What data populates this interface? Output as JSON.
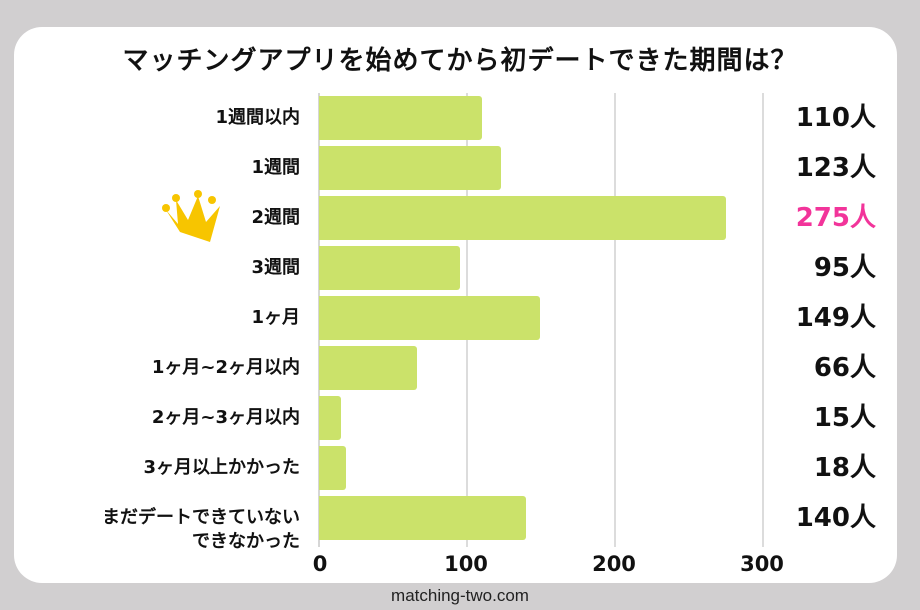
{
  "title": "マッチングアプリを始めてから初デートできた期間は？",
  "footer": "matching-two.com",
  "colors": {
    "bar": "#cbe26a",
    "highlight": "#f2349a",
    "crown": "#f7c500",
    "background": "#d1cfd0"
  },
  "rows": [
    {
      "label": "1週間以内",
      "value": 110,
      "value_label": "110人"
    },
    {
      "label": "1週間",
      "value": 123,
      "value_label": "123人"
    },
    {
      "label": "2週間",
      "value": 275,
      "value_label": "275人"
    },
    {
      "label": "3週間",
      "value": 95,
      "value_label": "95人"
    },
    {
      "label": "1ヶ月",
      "value": 149,
      "value_label": "149人"
    },
    {
      "label": "1ヶ月~2ヶ月以内",
      "value": 66,
      "value_label": "66人"
    },
    {
      "label": "2ヶ月~3ヶ月以内",
      "value": 15,
      "value_label": "15人"
    },
    {
      "label": "3ヶ月以上かかった",
      "value": 18,
      "value_label": "18人"
    },
    {
      "label_line1": "まだデートできていない",
      "label_line2": "できなかった",
      "value": 140,
      "value_label": "140人"
    }
  ],
  "ticks": [
    "0",
    "100",
    "200",
    "300"
  ],
  "crown_icon": "crown-icon",
  "chart_data": {
    "type": "bar",
    "orientation": "horizontal",
    "title": "マッチングアプリを始めてから初デートできた期間は？",
    "categories": [
      "1週間以内",
      "1週間",
      "2週間",
      "3週間",
      "1ヶ月",
      "1ヶ月~2ヶ月以内",
      "2ヶ月~3ヶ月以内",
      "3ヶ月以上かかった",
      "まだデートできていない/できなかった"
    ],
    "values": [
      110,
      123,
      275,
      95,
      149,
      66,
      15,
      18,
      140
    ],
    "unit": "人",
    "xlabel": "",
    "ylabel": "",
    "xlim": [
      0,
      300
    ],
    "xticks": [
      0,
      100,
      200,
      300
    ],
    "grid": true,
    "highlight": {
      "category": "2週間",
      "color": "#f2349a",
      "marker": "crown"
    },
    "legend": null
  }
}
